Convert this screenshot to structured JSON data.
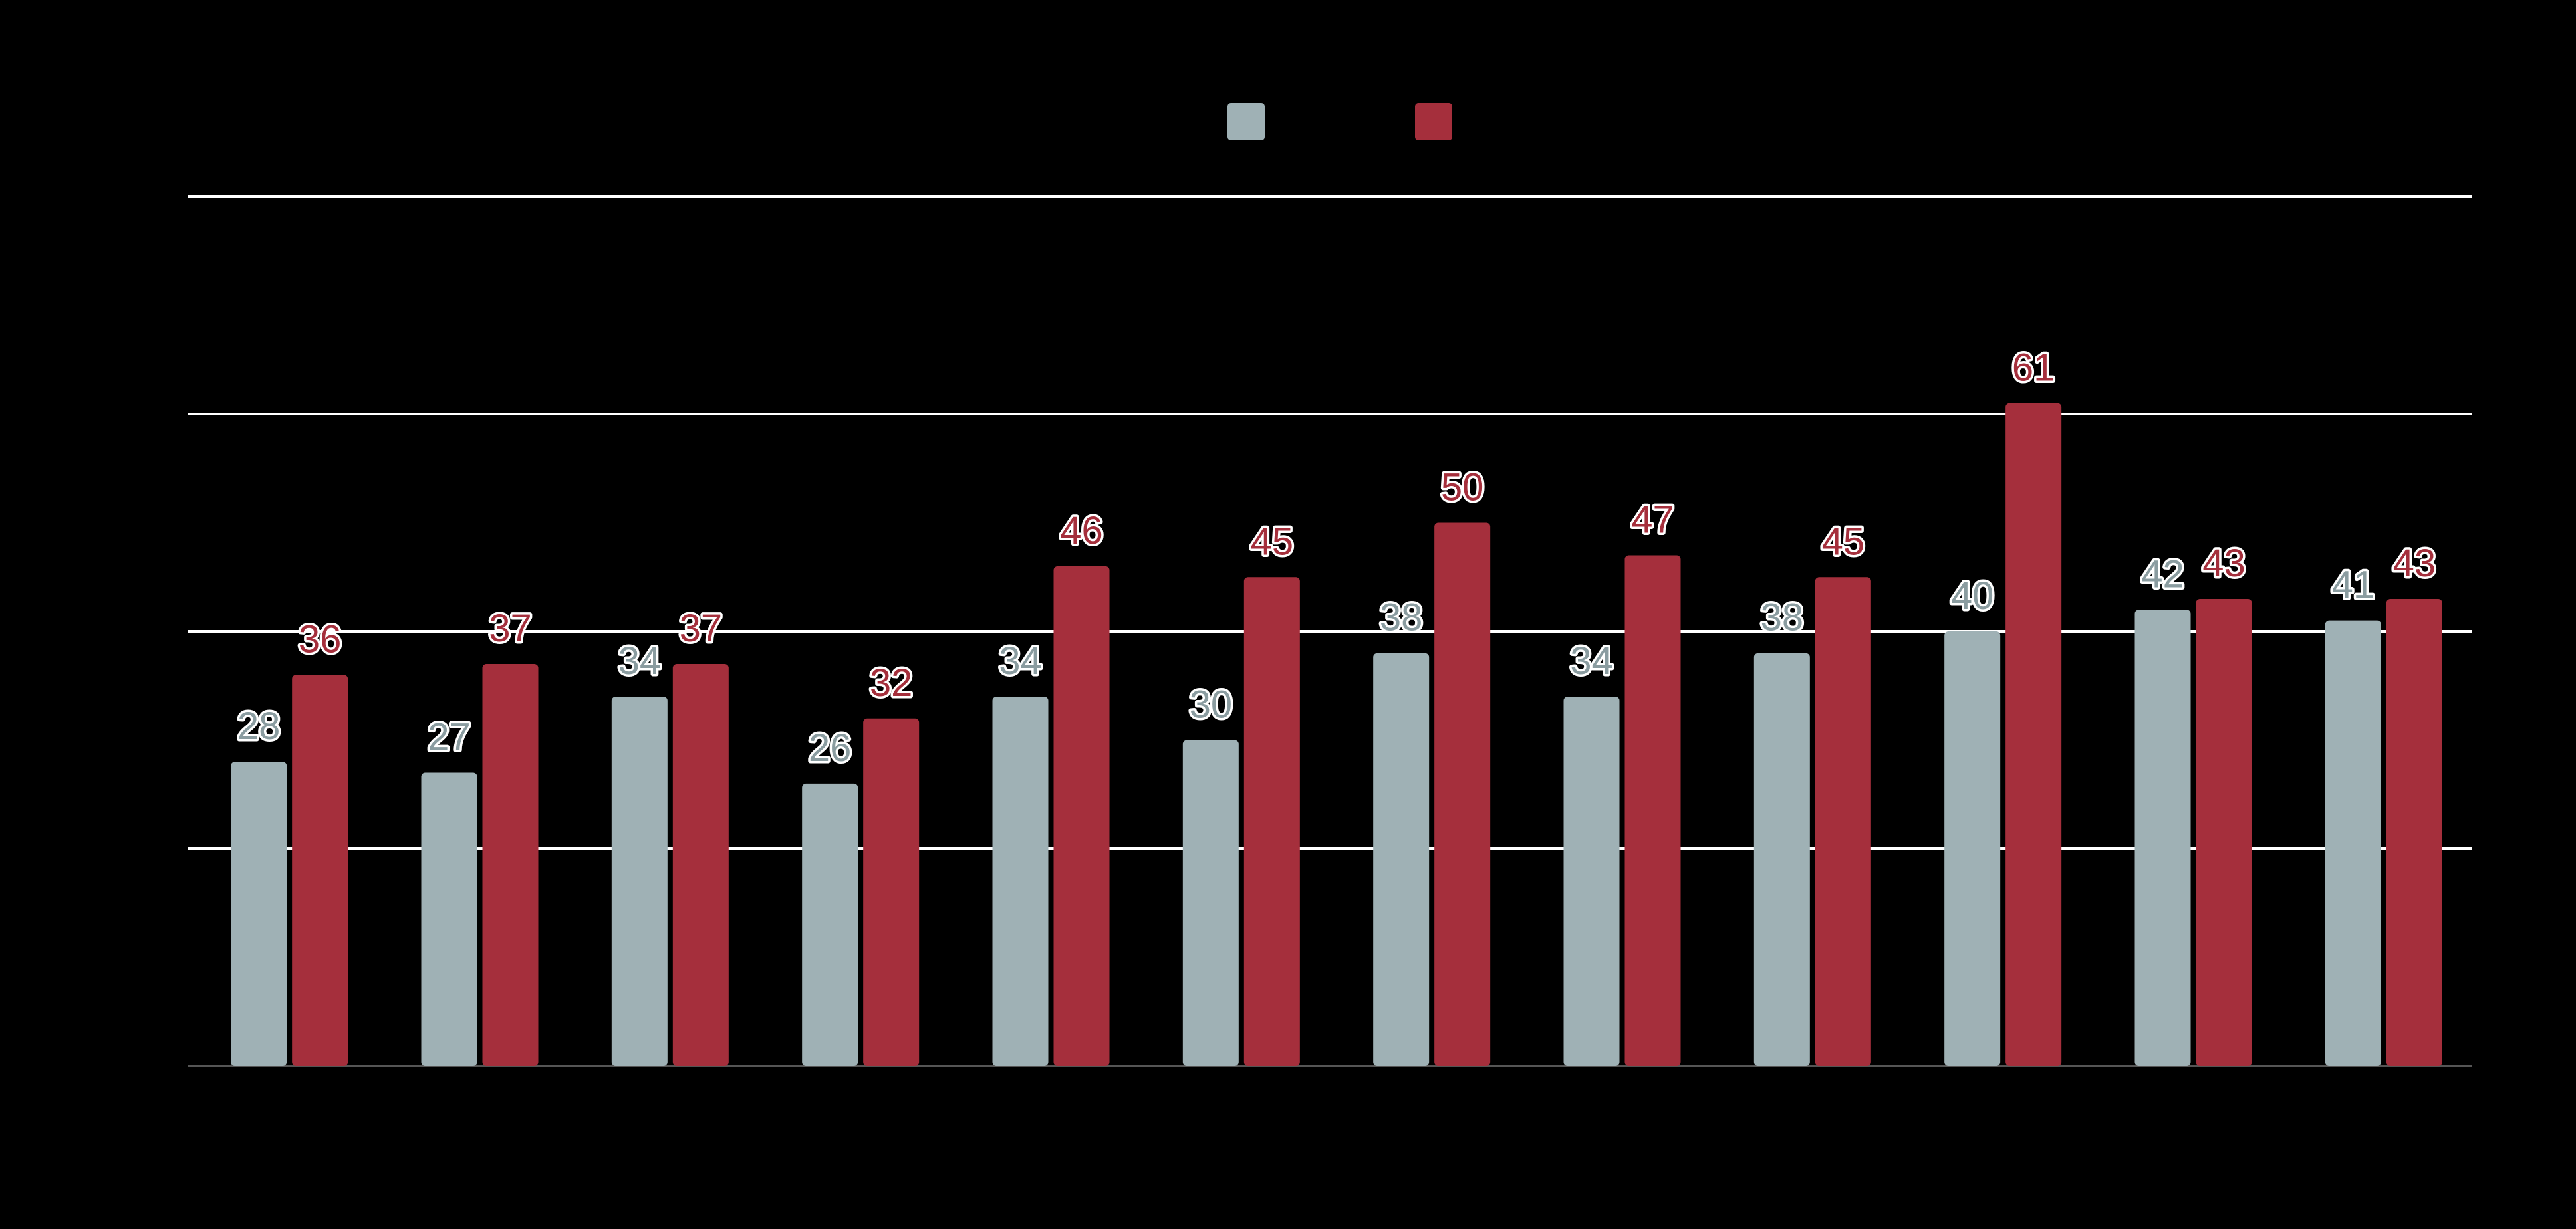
{
  "chart_data": {
    "type": "bar",
    "title": "",
    "xlabel": "",
    "ylabel": "",
    "categories": [
      "",
      "",
      "",
      "",
      "",
      "",
      "",
      "",
      "",
      "",
      "",
      ""
    ],
    "ylim": [
      0,
      80
    ],
    "y_gridlines": [
      20,
      40,
      60,
      80
    ],
    "grid": true,
    "legend_position": "top-center",
    "series": [
      {
        "values": [
          28,
          27,
          34,
          26,
          34,
          30,
          38,
          34,
          38,
          40,
          42,
          41
        ],
        "color": "#9fb1b5"
      },
      {
        "values": [
          36,
          37,
          37,
          32,
          46,
          45,
          50,
          47,
          45,
          61,
          43,
          43
        ],
        "color": "#a52f3c"
      }
    ],
    "data_labels": true,
    "colors": {
      "background": "#000000",
      "gridline": "#ffffff",
      "axis": "#555555"
    }
  }
}
